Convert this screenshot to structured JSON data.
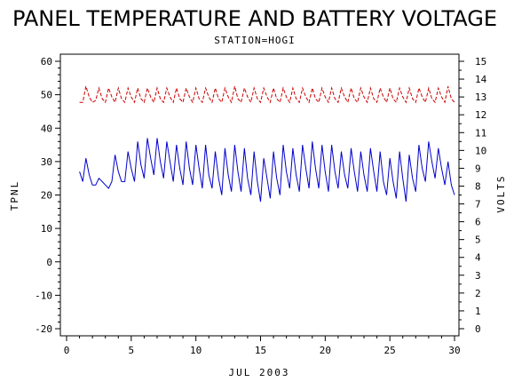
{
  "chart_data": {
    "type": "line",
    "title": "PANEL TEMPERATURE AND BATTERY VOLTAGE",
    "subtitle": "STATION=HOGI",
    "xlabel": "JUL 2003",
    "ylabel_left": "TPNL",
    "ylabel_right": "VOLTS",
    "xlim": [
      0,
      30
    ],
    "ylim_left": [
      -20,
      60
    ],
    "ylim_right": [
      0,
      15
    ],
    "x_ticks": [
      0,
      5,
      10,
      15,
      20,
      25,
      30
    ],
    "y_left_ticks": [
      -20,
      -10,
      0,
      10,
      20,
      30,
      40,
      50,
      60
    ],
    "y_right_ticks": [
      0,
      1,
      2,
      3,
      4,
      5,
      6,
      7,
      8,
      9,
      10,
      11,
      12,
      13,
      14,
      15
    ],
    "series": [
      {
        "axis": "left",
        "color": "#0000cc",
        "style": "solid",
        "x": [
          1.0,
          1.25,
          1.5,
          1.75,
          2.0,
          2.25,
          2.5,
          2.75,
          3.0,
          3.25,
          3.5,
          3.75,
          4.0,
          4.25,
          4.5,
          4.75,
          5.0,
          5.25,
          5.5,
          5.75,
          6.0,
          6.25,
          6.5,
          6.75,
          7.0,
          7.25,
          7.5,
          7.75,
          8.0,
          8.25,
          8.5,
          8.75,
          9.0,
          9.25,
          9.5,
          9.75,
          10.0,
          10.25,
          10.5,
          10.75,
          11.0,
          11.25,
          11.5,
          11.75,
          12.0,
          12.25,
          12.5,
          12.75,
          13.0,
          13.25,
          13.5,
          13.75,
          14.0,
          14.25,
          14.5,
          14.75,
          15.0,
          15.25,
          15.5,
          15.75,
          16.0,
          16.25,
          16.5,
          16.75,
          17.0,
          17.25,
          17.5,
          17.75,
          18.0,
          18.25,
          18.5,
          18.75,
          19.0,
          19.25,
          19.5,
          19.75,
          20.0,
          20.25,
          20.5,
          20.75,
          21.0,
          21.25,
          21.5,
          21.75,
          22.0,
          22.25,
          22.5,
          22.75,
          23.0,
          23.25,
          23.5,
          23.75,
          24.0,
          24.25,
          24.5,
          24.75,
          25.0,
          25.25,
          25.5,
          25.75,
          26.0,
          26.25,
          26.5,
          26.75,
          27.0,
          27.25,
          27.5,
          27.75,
          28.0,
          28.25,
          28.5,
          28.75,
          29.0,
          29.25,
          29.5,
          29.75,
          30.0
        ],
        "values": [
          27,
          24,
          31,
          26,
          23,
          23,
          25,
          24,
          23,
          22,
          24,
          32,
          27,
          24,
          24,
          33,
          28,
          24,
          36,
          29,
          25,
          37,
          31,
          26,
          37,
          30,
          25,
          36,
          30,
          24,
          35,
          28,
          23,
          36,
          28,
          23,
          35,
          28,
          22,
          35,
          26,
          22,
          33,
          25,
          20,
          34,
          26,
          21,
          35,
          27,
          21,
          34,
          25,
          20,
          33,
          24,
          18,
          31,
          25,
          19,
          33,
          25,
          20,
          35,
          27,
          22,
          34,
          26,
          21,
          35,
          28,
          22,
          36,
          28,
          22,
          35,
          27,
          21,
          35,
          27,
          22,
          33,
          26,
          22,
          34,
          27,
          21,
          33,
          26,
          21,
          34,
          27,
          21,
          33,
          24,
          20,
          31,
          24,
          19,
          33,
          25,
          18,
          32,
          25,
          21,
          35,
          28,
          24,
          36,
          30,
          25,
          34,
          28,
          23,
          30,
          23,
          20
        ]
      },
      {
        "axis": "right",
        "color": "#cc0000",
        "style": "dashed",
        "x": [
          1.0,
          1.25,
          1.5,
          1.75,
          2.0,
          2.25,
          2.5,
          2.75,
          3.0,
          3.25,
          3.5,
          3.75,
          4.0,
          4.25,
          4.5,
          4.75,
          5.0,
          5.25,
          5.5,
          5.75,
          6.0,
          6.25,
          6.5,
          6.75,
          7.0,
          7.25,
          7.5,
          7.75,
          8.0,
          8.25,
          8.5,
          8.75,
          9.0,
          9.25,
          9.5,
          9.75,
          10.0,
          10.25,
          10.5,
          10.75,
          11.0,
          11.25,
          11.5,
          11.75,
          12.0,
          12.25,
          12.5,
          12.75,
          13.0,
          13.25,
          13.5,
          13.75,
          14.0,
          14.25,
          14.5,
          14.75,
          15.0,
          15.25,
          15.5,
          15.75,
          16.0,
          16.25,
          16.5,
          16.75,
          17.0,
          17.25,
          17.5,
          17.75,
          18.0,
          18.25,
          18.5,
          18.75,
          19.0,
          19.25,
          19.5,
          19.75,
          20.0,
          20.25,
          20.5,
          20.75,
          21.0,
          21.25,
          21.5,
          21.75,
          22.0,
          22.25,
          22.5,
          22.75,
          23.0,
          23.25,
          23.5,
          23.75,
          24.0,
          24.25,
          24.5,
          24.75,
          25.0,
          25.25,
          25.5,
          25.75,
          26.0,
          26.25,
          26.5,
          26.75,
          27.0,
          27.25,
          27.5,
          27.75,
          28.0,
          28.25,
          28.5,
          28.75,
          29.0,
          29.25,
          29.5,
          29.75,
          30.0
        ],
        "values": [
          12.7,
          12.7,
          13.6,
          13.0,
          12.7,
          12.8,
          13.5,
          12.9,
          12.7,
          13.5,
          13.0,
          12.7,
          13.5,
          12.9,
          12.7,
          13.5,
          13.0,
          12.7,
          13.5,
          12.9,
          12.7,
          13.5,
          13.0,
          12.7,
          13.5,
          12.9,
          12.7,
          13.5,
          13.0,
          12.7,
          13.5,
          12.9,
          12.7,
          13.5,
          13.0,
          12.7,
          13.5,
          12.9,
          12.7,
          13.5,
          13.0,
          12.7,
          13.5,
          12.9,
          12.7,
          13.5,
          13.0,
          12.7,
          13.6,
          12.9,
          12.7,
          13.5,
          13.0,
          12.7,
          13.5,
          12.9,
          12.7,
          13.5,
          13.0,
          12.7,
          13.5,
          12.9,
          12.7,
          13.5,
          13.0,
          12.7,
          13.5,
          12.9,
          12.7,
          13.5,
          13.0,
          12.7,
          13.5,
          12.9,
          12.7,
          13.5,
          13.0,
          12.7,
          13.5,
          12.9,
          12.7,
          13.5,
          13.0,
          12.7,
          13.5,
          12.9,
          12.7,
          13.5,
          13.0,
          12.7,
          13.5,
          12.9,
          12.7,
          13.5,
          13.0,
          12.7,
          13.5,
          12.9,
          12.7,
          13.5,
          13.0,
          12.7,
          13.5,
          12.9,
          12.7,
          13.5,
          13.0,
          12.7,
          13.5,
          12.9,
          12.7,
          13.5,
          13.0,
          12.7,
          13.6,
          12.9,
          12.7
        ]
      }
    ]
  }
}
